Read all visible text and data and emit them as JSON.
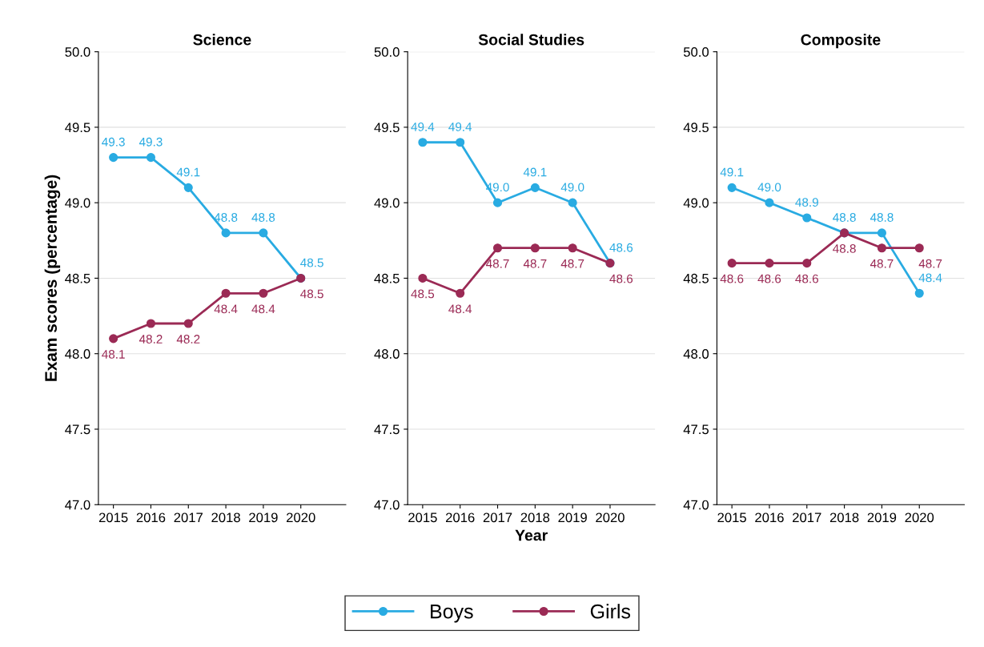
{
  "chart_data": [
    {
      "type": "line",
      "title": "Science",
      "ylabel": "Exam scores (percentage)",
      "categories": [
        "2015",
        "2016",
        "2017",
        "2018",
        "2019",
        "2020"
      ],
      "ylim": [
        47.0,
        50.0
      ],
      "yticks": [
        {
          "value": 47,
          "label": "47.0"
        },
        {
          "value": 47.5,
          "label": "47.5"
        },
        {
          "value": 48,
          "label": "48.0"
        },
        {
          "value": 48.5,
          "label": "48.5"
        },
        {
          "value": 49,
          "label": "49.0"
        },
        {
          "value": 49.5,
          "label": "49.5"
        },
        {
          "value": 50,
          "label": "50.0"
        }
      ],
      "grid": "y",
      "marker": "circle",
      "line_style": "solid",
      "legend": "bottom",
      "series": [
        {
          "name": "Boys",
          "color": "#29abe2",
          "values": [
            49.3,
            49.3,
            49.1,
            48.8,
            48.8,
            48.5
          ],
          "value_labels": [
            "49.3",
            "49.3",
            "49.1",
            "48.8",
            "48.8",
            "48.5"
          ]
        },
        {
          "name": "Girls",
          "color": "#9b2a55",
          "values": [
            48.1,
            48.2,
            48.2,
            48.4,
            48.4,
            48.5
          ],
          "value_labels": [
            "48.1",
            "48.2",
            "48.2",
            "48.4",
            "48.4",
            "48.5"
          ]
        }
      ]
    },
    {
      "type": "line",
      "title": "Social Studies",
      "xlabel": "Year",
      "categories": [
        "2015",
        "2016",
        "2017",
        "2018",
        "2019",
        "2020"
      ],
      "ylim": [
        47.0,
        50.0
      ],
      "yticks": [
        {
          "value": 47,
          "label": "47.0"
        },
        {
          "value": 47.5,
          "label": "47.5"
        },
        {
          "value": 48,
          "label": "48.0"
        },
        {
          "value": 48.5,
          "label": "48.5"
        },
        {
          "value": 49,
          "label": "49.0"
        },
        {
          "value": 49.5,
          "label": "49.5"
        },
        {
          "value": 50,
          "label": "50.0"
        }
      ],
      "grid": "y",
      "marker": "circle",
      "line_style": "solid",
      "series": [
        {
          "color": "#29abe2",
          "values": [
            49.4,
            49.4,
            49.0,
            49.1,
            49.0,
            48.6
          ],
          "value_labels": [
            "49.4",
            "49.4",
            "49.0",
            "49.1",
            "49.0",
            "48.6"
          ]
        },
        {
          "color": "#9b2a55",
          "values": [
            48.5,
            48.4,
            48.7,
            48.7,
            48.7,
            48.6
          ],
          "value_labels": [
            "48.5",
            "48.4",
            "48.7",
            "48.7",
            "48.7",
            "48.6"
          ]
        }
      ]
    },
    {
      "type": "line",
      "title": "Composite",
      "categories": [
        "2015",
        "2016",
        "2017",
        "2018",
        "2019",
        "2020"
      ],
      "ylim": [
        47.0,
        50.0
      ],
      "yticks": [
        {
          "value": 47,
          "label": "47.0"
        },
        {
          "value": 47.5,
          "label": "47.5"
        },
        {
          "value": 48,
          "label": "48.0"
        },
        {
          "value": 48.5,
          "label": "48.5"
        },
        {
          "value": 49,
          "label": "49.0"
        },
        {
          "value": 49.5,
          "label": "49.5"
        },
        {
          "value": 50,
          "label": "50.0"
        }
      ],
      "grid": "y",
      "marker": "circle",
      "line_style": "solid",
      "series": [
        {
          "color": "#29abe2",
          "values": [
            49.1,
            49.0,
            48.9,
            48.8,
            48.8,
            48.4
          ],
          "value_labels": [
            "49.1",
            "49.0",
            "48.9",
            "48.8",
            "48.8",
            "48.4"
          ]
        },
        {
          "color": "#9b2a55",
          "values": [
            48.6,
            48.6,
            48.6,
            48.8,
            48.7,
            48.7
          ],
          "value_labels": [
            "48.6",
            "48.6",
            "48.6",
            "48.8",
            "48.7",
            "48.7"
          ]
        }
      ]
    }
  ]
}
